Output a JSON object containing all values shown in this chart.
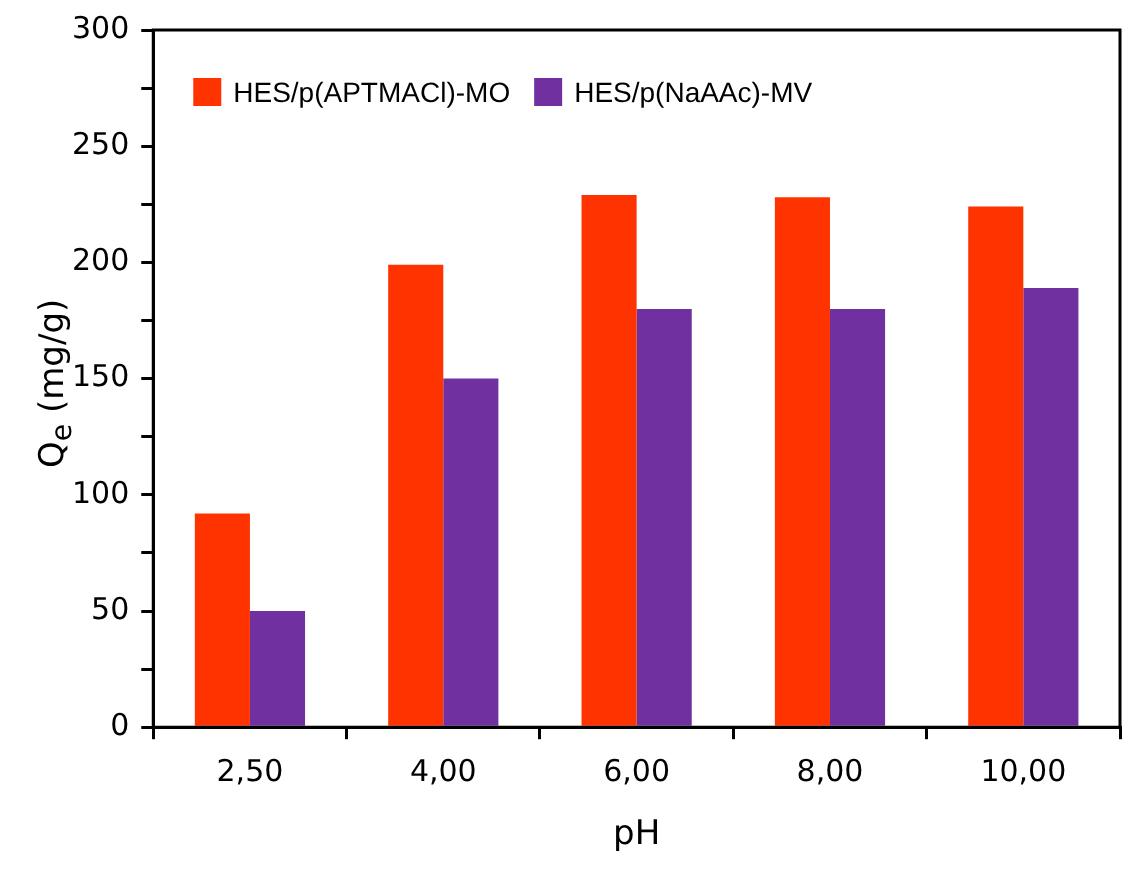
{
  "chart_data": {
    "type": "bar",
    "xlabel": "pH",
    "ylabel": "Q$_{e}$ (mg/g)",
    "categories": [
      "2,50",
      "4,00",
      "6,00",
      "8,00",
      "10,00"
    ],
    "series": [
      {
        "name": "HES/p(APTMACl)-MO",
        "color": "#ff3300",
        "values": [
          92,
          199,
          229,
          228,
          224
        ]
      },
      {
        "name": "HES/p(NaAAc)-MV",
        "color": "#7030a0",
        "values": [
          50,
          150,
          180,
          180,
          189
        ]
      }
    ],
    "ylim": [
      0,
      300
    ],
    "yticks": [
      0,
      {
        "value": 25,
        "label": null
      },
      50,
      {
        "value": 75,
        "label": null
      },
      100,
      {
        "value": 125,
        "label": null
      },
      150,
      {
        "value": 175,
        "label": null
      },
      200,
      {
        "value": 225,
        "label": null
      },
      250,
      {
        "value": 275,
        "label": null
      },
      300
    ],
    "grid": false,
    "legend": "top left"
  }
}
